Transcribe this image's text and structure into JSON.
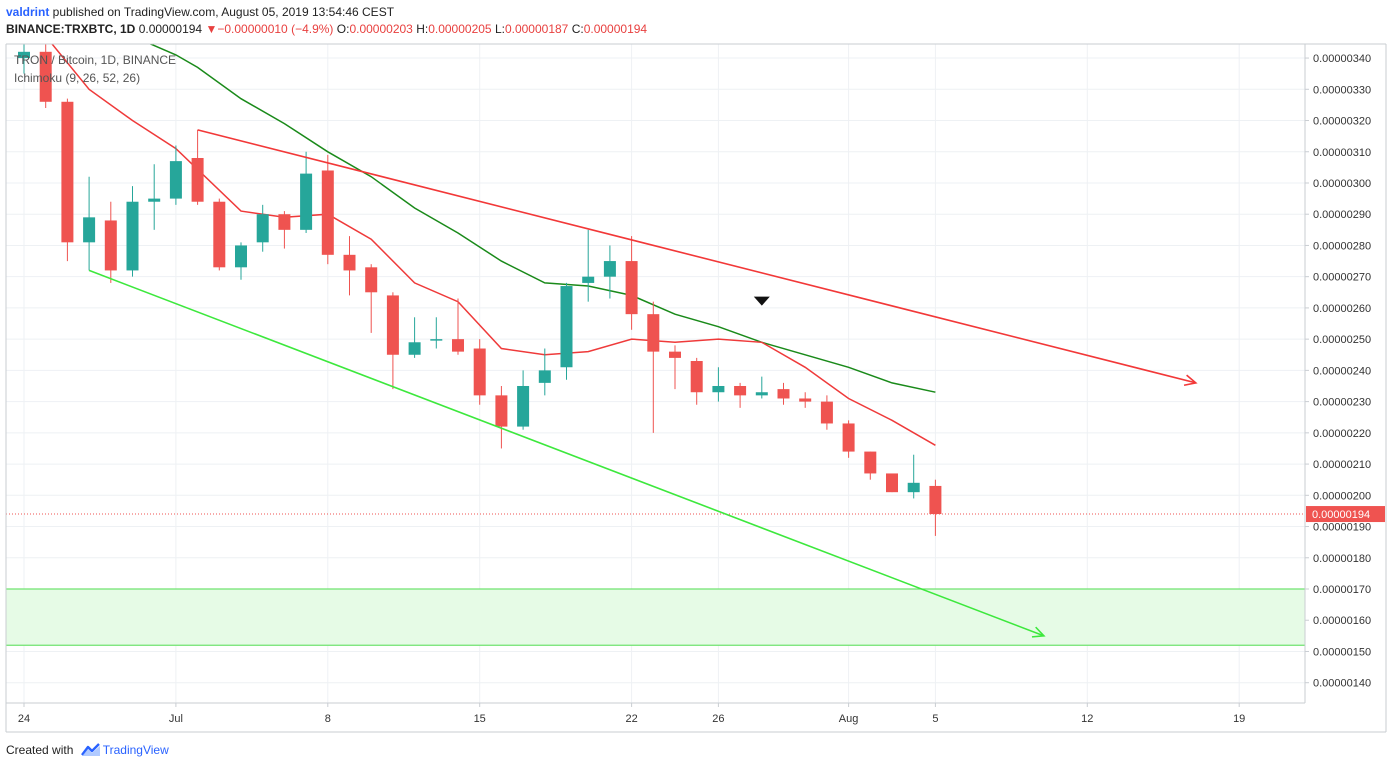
{
  "header": {
    "user": "valdrint",
    "published": " published on TradingView.com, August 05, 2019 13:54:46 CEST",
    "symbol": "BINANCE:TRXBTC, 1D",
    "last": "0.00000194",
    "change_arrow": "▼",
    "change": "−0.00000010 (−4.9%)",
    "o_label": "O:",
    "o": "0.00000203",
    "h_label": "H:",
    "h": "0.00000205",
    "l_label": "L:",
    "l": "0.00000187",
    "c_label": "C:",
    "c": "0.00000194"
  },
  "legend": {
    "pair": "TRON / Bitcoin, 1D, BINANCE",
    "indicator": "Ichimoku (9, 26, 52, 26)"
  },
  "footer": {
    "created": "Created with",
    "brand": "TradingView"
  },
  "colors": {
    "up": "#26a69a",
    "down": "#ef5350",
    "resistance": "#f23838",
    "support": "#3de83d",
    "tenkan": "#ef3a3a",
    "kijun": "#1a8a1a",
    "zone": "#e6fbe6",
    "last_price_bg": "#ef5350"
  },
  "chart_data": {
    "type": "candlestick",
    "y_ticks": [
      "0.00000340",
      "0.00000330",
      "0.00000320",
      "0.00000310",
      "0.00000300",
      "0.00000290",
      "0.00000280",
      "0.00000270",
      "0.00000260",
      "0.00000250",
      "0.00000240",
      "0.00000230",
      "0.00000220",
      "0.00000210",
      "0.00000200",
      "0.00000190",
      "0.00000180",
      "0.00000170",
      "0.00000160",
      "0.00000150",
      "0.00000140"
    ],
    "ylim": [
      1.335e-06,
      3.445e-06
    ],
    "x_labels": [
      {
        "label": "24",
        "date": "2019-06-24"
      },
      {
        "label": "Jul",
        "date": "2019-07-01"
      },
      {
        "label": "8",
        "date": "2019-07-08"
      },
      {
        "label": "15",
        "date": "2019-07-15"
      },
      {
        "label": "22",
        "date": "2019-07-22"
      },
      {
        "label": "26",
        "date": "2019-07-26"
      },
      {
        "label": "Aug",
        "date": "2019-08-01"
      },
      {
        "label": "5",
        "date": "2019-08-05"
      },
      {
        "label": "12",
        "date": "2019-08-12"
      },
      {
        "label": "19",
        "date": "2019-08-19"
      }
    ],
    "candles": [
      {
        "date": "2019-06-24",
        "o": 3.4e-06,
        "h": 3.45e-06,
        "l": 3.35e-06,
        "c": 3.42e-06
      },
      {
        "date": "2019-06-25",
        "o": 3.42e-06,
        "h": 3.45e-06,
        "l": 3.24e-06,
        "c": 3.26e-06
      },
      {
        "date": "2019-06-26",
        "o": 3.26e-06,
        "h": 3.27e-06,
        "l": 2.75e-06,
        "c": 2.81e-06
      },
      {
        "date": "2019-06-27",
        "o": 2.81e-06,
        "h": 3.02e-06,
        "l": 2.72e-06,
        "c": 2.89e-06
      },
      {
        "date": "2019-06-28",
        "o": 2.88e-06,
        "h": 2.94e-06,
        "l": 2.68e-06,
        "c": 2.72e-06
      },
      {
        "date": "2019-06-29",
        "o": 2.72e-06,
        "h": 2.99e-06,
        "l": 2.7e-06,
        "c": 2.94e-06
      },
      {
        "date": "2019-06-30",
        "o": 2.94e-06,
        "h": 3.06e-06,
        "l": 2.85e-06,
        "c": 2.95e-06
      },
      {
        "date": "2019-07-01",
        "o": 2.95e-06,
        "h": 3.12e-06,
        "l": 2.93e-06,
        "c": 3.07e-06
      },
      {
        "date": "2019-07-02",
        "o": 3.08e-06,
        "h": 3.17e-06,
        "l": 2.93e-06,
        "c": 2.94e-06
      },
      {
        "date": "2019-07-03",
        "o": 2.94e-06,
        "h": 2.95e-06,
        "l": 2.72e-06,
        "c": 2.73e-06
      },
      {
        "date": "2019-07-04",
        "o": 2.73e-06,
        "h": 2.81e-06,
        "l": 2.69e-06,
        "c": 2.8e-06
      },
      {
        "date": "2019-07-05",
        "o": 2.81e-06,
        "h": 2.93e-06,
        "l": 2.78e-06,
        "c": 2.9e-06
      },
      {
        "date": "2019-07-06",
        "o": 2.9e-06,
        "h": 2.91e-06,
        "l": 2.79e-06,
        "c": 2.85e-06
      },
      {
        "date": "2019-07-07",
        "o": 2.85e-06,
        "h": 3.1e-06,
        "l": 2.84e-06,
        "c": 3.03e-06
      },
      {
        "date": "2019-07-08",
        "o": 3.04e-06,
        "h": 3.09e-06,
        "l": 2.74e-06,
        "c": 2.77e-06
      },
      {
        "date": "2019-07-09",
        "o": 2.77e-06,
        "h": 2.83e-06,
        "l": 2.64e-06,
        "c": 2.72e-06
      },
      {
        "date": "2019-07-10",
        "o": 2.73e-06,
        "h": 2.74e-06,
        "l": 2.52e-06,
        "c": 2.65e-06
      },
      {
        "date": "2019-07-11",
        "o": 2.64e-06,
        "h": 2.65e-06,
        "l": 2.34e-06,
        "c": 2.45e-06
      },
      {
        "date": "2019-07-12",
        "o": 2.45e-06,
        "h": 2.57e-06,
        "l": 2.44e-06,
        "c": 2.49e-06
      },
      {
        "date": "2019-07-13",
        "o": 2.5e-06,
        "h": 2.57e-06,
        "l": 2.47e-06,
        "c": 2.5e-06
      },
      {
        "date": "2019-07-14",
        "o": 2.5e-06,
        "h": 2.63e-06,
        "l": 2.45e-06,
        "c": 2.46e-06
      },
      {
        "date": "2019-07-15",
        "o": 2.47e-06,
        "h": 2.5e-06,
        "l": 2.29e-06,
        "c": 2.32e-06
      },
      {
        "date": "2019-07-16",
        "o": 2.32e-06,
        "h": 2.35e-06,
        "l": 2.15e-06,
        "c": 2.22e-06
      },
      {
        "date": "2019-07-17",
        "o": 2.22e-06,
        "h": 2.4e-06,
        "l": 2.21e-06,
        "c": 2.35e-06
      },
      {
        "date": "2019-07-18",
        "o": 2.36e-06,
        "h": 2.47e-06,
        "l": 2.32e-06,
        "c": 2.4e-06
      },
      {
        "date": "2019-07-19",
        "o": 2.41e-06,
        "h": 2.68e-06,
        "l": 2.37e-06,
        "c": 2.67e-06
      },
      {
        "date": "2019-07-20",
        "o": 2.68e-06,
        "h": 2.85e-06,
        "l": 2.62e-06,
        "c": 2.7e-06
      },
      {
        "date": "2019-07-21",
        "o": 2.7e-06,
        "h": 2.8e-06,
        "l": 2.63e-06,
        "c": 2.75e-06
      },
      {
        "date": "2019-07-22",
        "o": 2.75e-06,
        "h": 2.83e-06,
        "l": 2.53e-06,
        "c": 2.58e-06
      },
      {
        "date": "2019-07-23",
        "o": 2.58e-06,
        "h": 2.62e-06,
        "l": 2.2e-06,
        "c": 2.46e-06
      },
      {
        "date": "2019-07-24",
        "o": 2.46e-06,
        "h": 2.48e-06,
        "l": 2.34e-06,
        "c": 2.44e-06
      },
      {
        "date": "2019-07-25",
        "o": 2.43e-06,
        "h": 2.44e-06,
        "l": 2.29e-06,
        "c": 2.33e-06
      },
      {
        "date": "2019-07-26",
        "o": 2.33e-06,
        "h": 2.41e-06,
        "l": 2.3e-06,
        "c": 2.35e-06
      },
      {
        "date": "2019-07-27",
        "o": 2.35e-06,
        "h": 2.36e-06,
        "l": 2.28e-06,
        "c": 2.32e-06
      },
      {
        "date": "2019-07-28",
        "o": 2.32e-06,
        "h": 2.38e-06,
        "l": 2.31e-06,
        "c": 2.33e-06
      },
      {
        "date": "2019-07-29",
        "o": 2.34e-06,
        "h": 2.36e-06,
        "l": 2.29e-06,
        "c": 2.31e-06
      },
      {
        "date": "2019-07-30",
        "o": 2.31e-06,
        "h": 2.33e-06,
        "l": 2.28e-06,
        "c": 2.3e-06
      },
      {
        "date": "2019-07-31",
        "o": 2.3e-06,
        "h": 2.32e-06,
        "l": 2.21e-06,
        "c": 2.23e-06
      },
      {
        "date": "2019-08-01",
        "o": 2.23e-06,
        "h": 2.24e-06,
        "l": 2.12e-06,
        "c": 2.14e-06
      },
      {
        "date": "2019-08-02",
        "o": 2.14e-06,
        "h": 2.14e-06,
        "l": 2.05e-06,
        "c": 2.07e-06
      },
      {
        "date": "2019-08-03",
        "o": 2.07e-06,
        "h": 2.07e-06,
        "l": 2.01e-06,
        "c": 2.01e-06
      },
      {
        "date": "2019-08-04",
        "o": 2.01e-06,
        "h": 2.13e-06,
        "l": 1.99e-06,
        "c": 2.04e-06
      },
      {
        "date": "2019-08-05",
        "o": 2.03e-06,
        "h": 2.05e-06,
        "l": 1.87e-06,
        "c": 1.94e-06
      }
    ],
    "tenkan": [
      {
        "date": "2019-06-25",
        "v": 3.47e-06
      },
      {
        "date": "2019-06-27",
        "v": 3.3e-06
      },
      {
        "date": "2019-06-29",
        "v": 3.2e-06
      },
      {
        "date": "2019-07-01",
        "v": 3.11e-06
      },
      {
        "date": "2019-07-04",
        "v": 2.91e-06
      },
      {
        "date": "2019-07-06",
        "v": 2.89e-06
      },
      {
        "date": "2019-07-08",
        "v": 2.9e-06
      },
      {
        "date": "2019-07-10",
        "v": 2.82e-06
      },
      {
        "date": "2019-07-12",
        "v": 2.68e-06
      },
      {
        "date": "2019-07-14",
        "v": 2.62e-06
      },
      {
        "date": "2019-07-16",
        "v": 2.47e-06
      },
      {
        "date": "2019-07-18",
        "v": 2.45e-06
      },
      {
        "date": "2019-07-20",
        "v": 2.46e-06
      },
      {
        "date": "2019-07-22",
        "v": 2.5e-06
      },
      {
        "date": "2019-07-24",
        "v": 2.49e-06
      },
      {
        "date": "2019-07-26",
        "v": 2.5e-06
      },
      {
        "date": "2019-07-28",
        "v": 2.49e-06
      },
      {
        "date": "2019-07-30",
        "v": 2.41e-06
      },
      {
        "date": "2019-08-01",
        "v": 2.31e-06
      },
      {
        "date": "2019-08-03",
        "v": 2.24e-06
      },
      {
        "date": "2019-08-05",
        "v": 2.16e-06
      }
    ],
    "kijun": [
      {
        "date": "2019-06-29",
        "v": 3.47e-06
      },
      {
        "date": "2019-07-01",
        "v": 3.41e-06
      },
      {
        "date": "2019-07-02",
        "v": 3.37e-06
      },
      {
        "date": "2019-07-04",
        "v": 3.27e-06
      },
      {
        "date": "2019-07-06",
        "v": 3.19e-06
      },
      {
        "date": "2019-07-08",
        "v": 3.1e-06
      },
      {
        "date": "2019-07-10",
        "v": 3.02e-06
      },
      {
        "date": "2019-07-12",
        "v": 2.92e-06
      },
      {
        "date": "2019-07-14",
        "v": 2.84e-06
      },
      {
        "date": "2019-07-16",
        "v": 2.75e-06
      },
      {
        "date": "2019-07-18",
        "v": 2.68e-06
      },
      {
        "date": "2019-07-20",
        "v": 2.67e-06
      },
      {
        "date": "2019-07-22",
        "v": 2.64e-06
      },
      {
        "date": "2019-07-24",
        "v": 2.58e-06
      },
      {
        "date": "2019-07-26",
        "v": 2.54e-06
      },
      {
        "date": "2019-07-28",
        "v": 2.49e-06
      },
      {
        "date": "2019-07-30",
        "v": 2.45e-06
      },
      {
        "date": "2019-08-01",
        "v": 2.41e-06
      },
      {
        "date": "2019-08-03",
        "v": 2.36e-06
      },
      {
        "date": "2019-08-05",
        "v": 2.33e-06
      }
    ],
    "resistance_line": {
      "from": {
        "date": "2019-07-02",
        "v": 3.17e-06
      },
      "to": {
        "date": "2019-08-17",
        "v": 2.36e-06
      }
    },
    "support_line": {
      "from": {
        "date": "2019-06-27",
        "v": 2.72e-06
      },
      "to": {
        "date": "2019-08-10",
        "v": 1.55e-06
      }
    },
    "support_zone": [
      1.52e-06,
      1.7e-06
    ],
    "last_price": {
      "value": 1.94e-06,
      "label": "0.00000194"
    },
    "marker": {
      "date": "2019-07-28",
      "v": 2.62e-06,
      "shape": "down-triangle"
    }
  }
}
